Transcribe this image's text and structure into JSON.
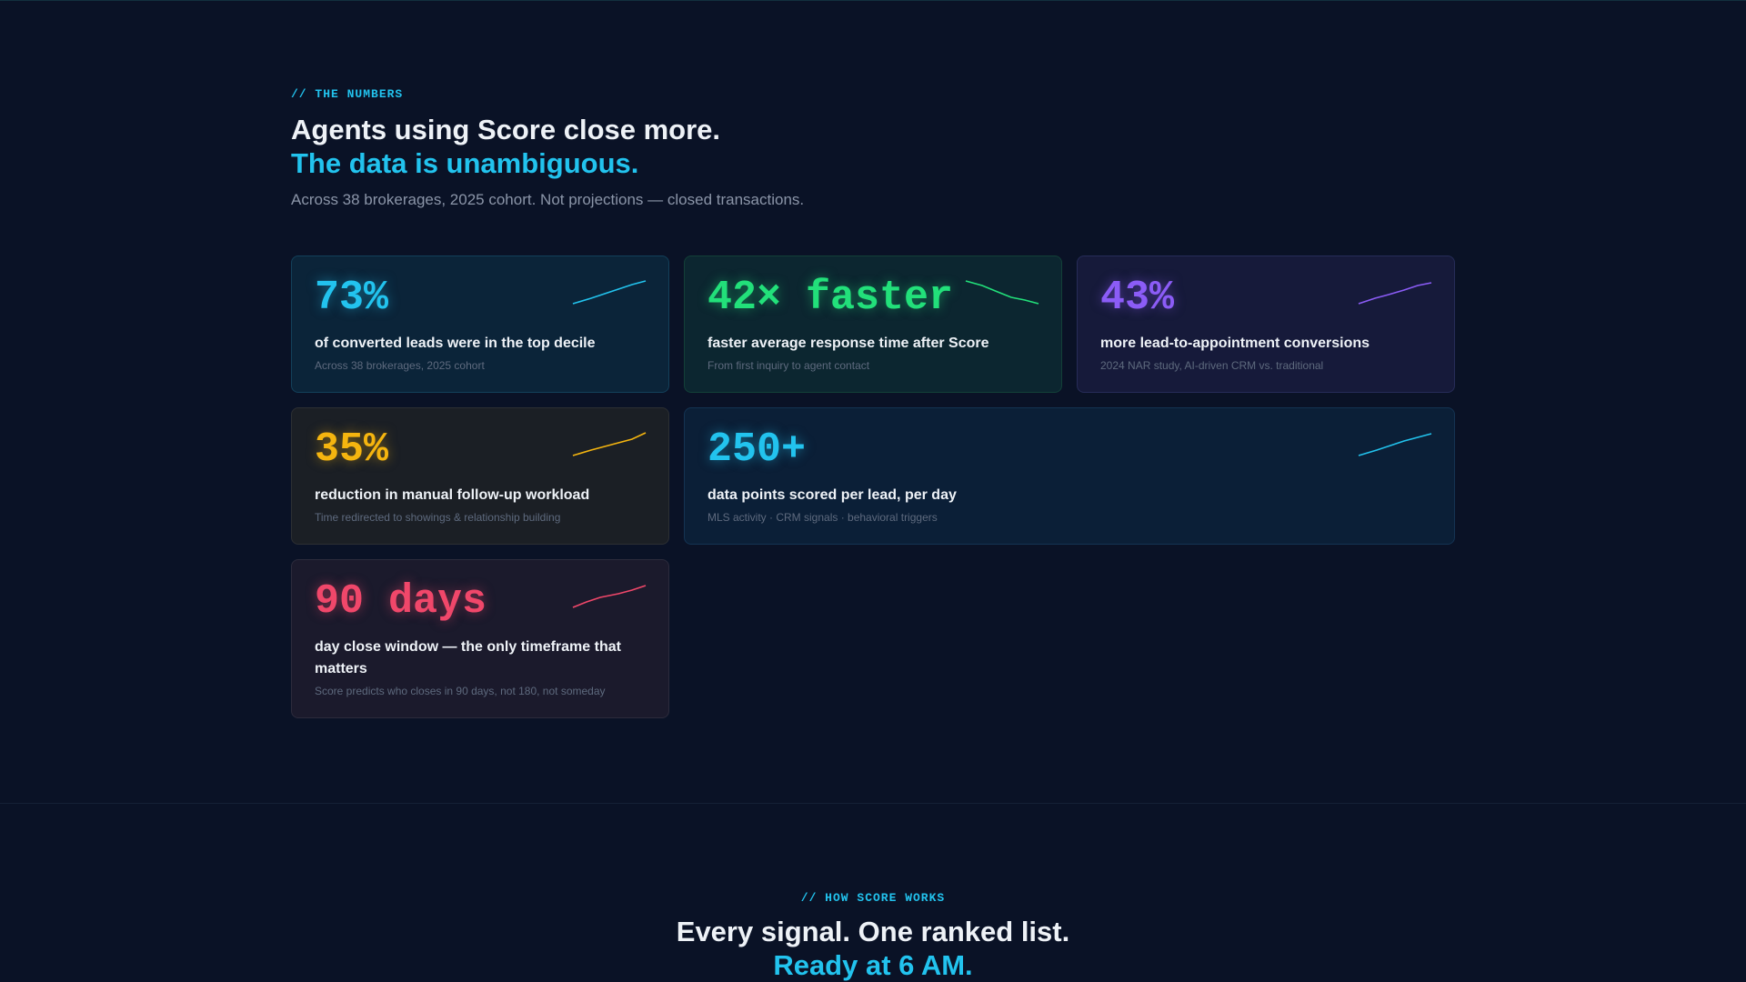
{
  "numbers": {
    "eyebrow": "// THE NUMBERS",
    "title_line1": "Agents using Score close more.",
    "title_line2": "The data is unambiguous.",
    "subtitle": "Across 38 brokerages, 2025 cohort. Not projections — closed transactions.",
    "stats": [
      {
        "value": "73%",
        "label": "of converted leads were in the top decile",
        "note": "Across 38 brokerages, 2025 cohort"
      },
      {
        "value": "42× faster",
        "label": "faster average response time after Score",
        "note": "From first inquiry to agent contact"
      },
      {
        "value": "43%",
        "label": "more lead-to-appointment conversions",
        "note": "2024 NAR study, AI-driven CRM vs. traditional"
      },
      {
        "value": "35%",
        "label": "reduction in manual follow-up workload",
        "note": "Time redirected to showings & relationship building"
      },
      {
        "value": "250+",
        "label": "data points scored per lead, per day",
        "note": "MLS activity · CRM signals · behavioral triggers"
      },
      {
        "value": "90 days",
        "label": "day close window — the only timeframe that matters",
        "note": "Score predicts who closes in 90 days, not 180, not someday"
      }
    ]
  },
  "how": {
    "eyebrow": "// HOW SCORE WORKS",
    "title_line1": "Every signal. One ranked list.",
    "title_line2": "Ready at 6 AM."
  }
}
